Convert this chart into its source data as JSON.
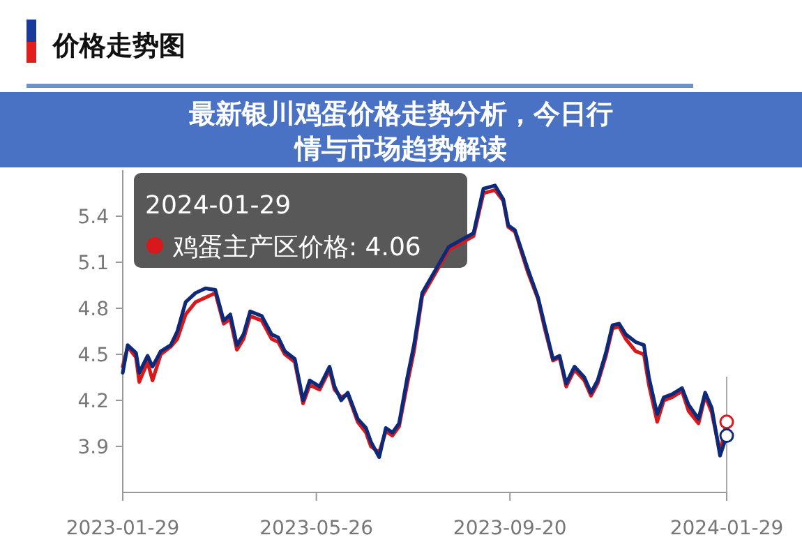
{
  "chart_data": {
    "type": "line",
    "title": "价格走势图",
    "x": [
      "2023-01-29",
      "2023-02-01",
      "2023-02-06",
      "2023-02-08",
      "2023-02-13",
      "2023-02-16",
      "2023-02-21",
      "2023-02-27",
      "2023-03-03",
      "2023-03-08",
      "2023-03-14",
      "2023-03-20",
      "2023-03-26",
      "2023-03-31",
      "2023-04-04",
      "2023-04-08",
      "2023-04-12",
      "2023-04-16",
      "2023-04-23",
      "2023-04-29",
      "2023-05-03",
      "2023-05-07",
      "2023-05-13",
      "2023-05-18",
      "2023-05-22",
      "2023-05-28",
      "2023-06-03",
      "2023-06-06",
      "2023-06-10",
      "2023-06-14",
      "2023-06-20",
      "2023-06-25",
      "2023-06-28",
      "2023-07-03",
      "2023-07-07",
      "2023-07-11",
      "2023-07-15",
      "2023-07-20",
      "2023-07-24",
      "2023-07-29",
      "2023-08-06",
      "2023-08-14",
      "2023-08-29",
      "2023-09-04",
      "2023-09-11",
      "2023-09-16",
      "2023-09-19",
      "2023-09-23",
      "2023-10-01",
      "2023-10-07",
      "2023-10-11",
      "2023-10-16",
      "2023-10-20",
      "2023-10-24",
      "2023-10-29",
      "2023-11-04",
      "2023-11-08",
      "2023-11-12",
      "2023-11-17",
      "2023-11-21",
      "2023-11-25",
      "2023-11-29",
      "2023-12-05",
      "2023-12-10",
      "2023-12-13",
      "2023-12-18",
      "2023-12-22",
      "2023-12-27",
      "2024-01-02",
      "2024-01-06",
      "2024-01-12",
      "2024-01-16",
      "2024-01-20",
      "2024-01-25",
      "2024-01-29"
    ],
    "series": [
      {
        "name": "鸡蛋主产区价格:",
        "color": "#d7191c",
        "value_labels": [
          null,
          null,
          null,
          null,
          null,
          null,
          null,
          null,
          null,
          null,
          null,
          null,
          null,
          null,
          null,
          null,
          null,
          null,
          null,
          null,
          null,
          null,
          null,
          null,
          null,
          null,
          null,
          null,
          null,
          null,
          null,
          null,
          null,
          null,
          null,
          null,
          null,
          null,
          null,
          null,
          null,
          null,
          null,
          null,
          null,
          null,
          null,
          null,
          null,
          null,
          null,
          null,
          null,
          null,
          null,
          null,
          null,
          null,
          null,
          null,
          null,
          null,
          null,
          null,
          null,
          null,
          null,
          null,
          null,
          null,
          null,
          null,
          null,
          null,
          "4.06"
        ],
        "values": [
          4.42,
          4.55,
          4.48,
          4.32,
          4.45,
          4.33,
          4.5,
          4.55,
          4.6,
          4.76,
          4.84,
          4.87,
          4.9,
          4.7,
          4.73,
          4.53,
          4.6,
          4.75,
          4.72,
          4.6,
          4.58,
          4.5,
          4.45,
          4.18,
          4.3,
          4.27,
          4.4,
          4.27,
          4.22,
          4.24,
          4.06,
          3.99,
          3.9,
          3.86,
          4.0,
          3.97,
          4.03,
          4.31,
          4.52,
          4.88,
          5.03,
          5.18,
          5.27,
          5.55,
          5.57,
          5.5,
          5.33,
          5.3,
          5.03,
          4.86,
          4.67,
          4.46,
          4.48,
          4.29,
          4.4,
          4.33,
          4.23,
          4.31,
          4.49,
          4.67,
          4.68,
          4.6,
          4.52,
          4.5,
          4.3,
          4.06,
          4.2,
          4.22,
          4.26,
          4.13,
          4.05,
          4.23,
          4.12,
          3.86,
          4.06
        ]
      },
      {
        "color": "#0d2a7a",
        "values": [
          4.38,
          4.56,
          4.51,
          4.38,
          4.49,
          4.42,
          4.52,
          4.56,
          4.65,
          4.84,
          4.9,
          4.93,
          4.92,
          4.72,
          4.76,
          4.56,
          4.63,
          4.78,
          4.75,
          4.63,
          4.61,
          4.52,
          4.47,
          4.2,
          4.33,
          4.29,
          4.42,
          4.29,
          4.2,
          4.25,
          4.08,
          4.02,
          3.93,
          3.83,
          4.02,
          3.99,
          4.05,
          4.35,
          4.56,
          4.9,
          5.05,
          5.2,
          5.29,
          5.58,
          5.6,
          5.51,
          5.34,
          5.31,
          5.05,
          4.87,
          4.69,
          4.47,
          4.49,
          4.31,
          4.42,
          4.35,
          4.25,
          4.33,
          4.51,
          4.69,
          4.7,
          4.63,
          4.58,
          4.56,
          4.35,
          4.11,
          4.22,
          4.24,
          4.28,
          4.17,
          4.08,
          4.25,
          4.15,
          3.84,
          3.97
        ]
      }
    ],
    "xlim": [
      "2023-01-29",
      "2024-01-29"
    ],
    "xticks": [
      "2023-01-29",
      "2023-05-26",
      "2023-09-20",
      "2024-01-29"
    ],
    "ylim": [
      3.6,
      5.7
    ],
    "yticks": [
      3.9,
      4.2,
      4.5,
      4.8,
      5.1,
      5.4
    ],
    "grid": false,
    "marker": "none",
    "line_style": "solid",
    "annotations": [
      "2024-01-29",
      "最新银川鸡蛋价格走势分析，今日行情与市场趋势解读"
    ]
  }
}
